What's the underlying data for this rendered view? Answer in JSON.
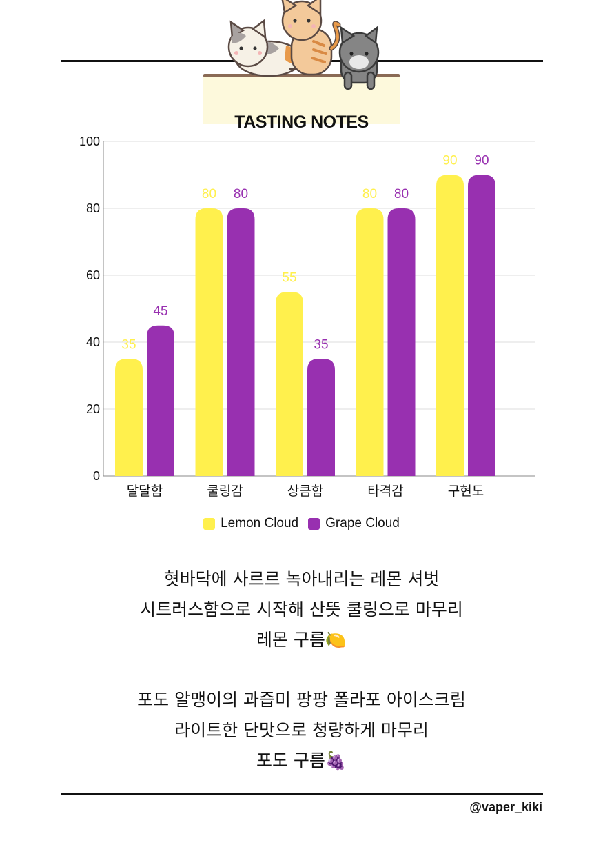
{
  "chart_data": {
    "type": "bar",
    "title": "TASTING NOTES",
    "categories": [
      "달달함",
      "쿨링감",
      "상큼함",
      "타격감",
      "구현도"
    ],
    "series": [
      {
        "name": "Lemon Cloud",
        "values": [
          35,
          80,
          55,
          80,
          90
        ],
        "color": "#fff04d"
      },
      {
        "name": "Grape Cloud",
        "values": [
          45,
          80,
          35,
          80,
          90
        ],
        "color": "#9830b0"
      }
    ],
    "ylim": [
      0,
      100
    ],
    "yticks": [
      0,
      20,
      40,
      60,
      80,
      100
    ],
    "grid": true,
    "legend": "bottom"
  },
  "notes": {
    "lemon": {
      "line1": "혓바닥에 사르르 녹아내리는 레몬 셔벗",
      "line2": "시트러스함으로 시작해 산뜻 쿨링으로 마무리",
      "line3": "레몬 구름🍋"
    },
    "grape": {
      "line1": "포도 알맹이의 과즙미 팡팡 폴라포 아이스크림",
      "line2": "라이트한 단맛으로 청량하게 마무리",
      "line3": "포도 구름🍇"
    }
  },
  "footer": {
    "handle": "@vaper_kiki"
  },
  "decoration": {
    "icon": "cats-icon"
  }
}
